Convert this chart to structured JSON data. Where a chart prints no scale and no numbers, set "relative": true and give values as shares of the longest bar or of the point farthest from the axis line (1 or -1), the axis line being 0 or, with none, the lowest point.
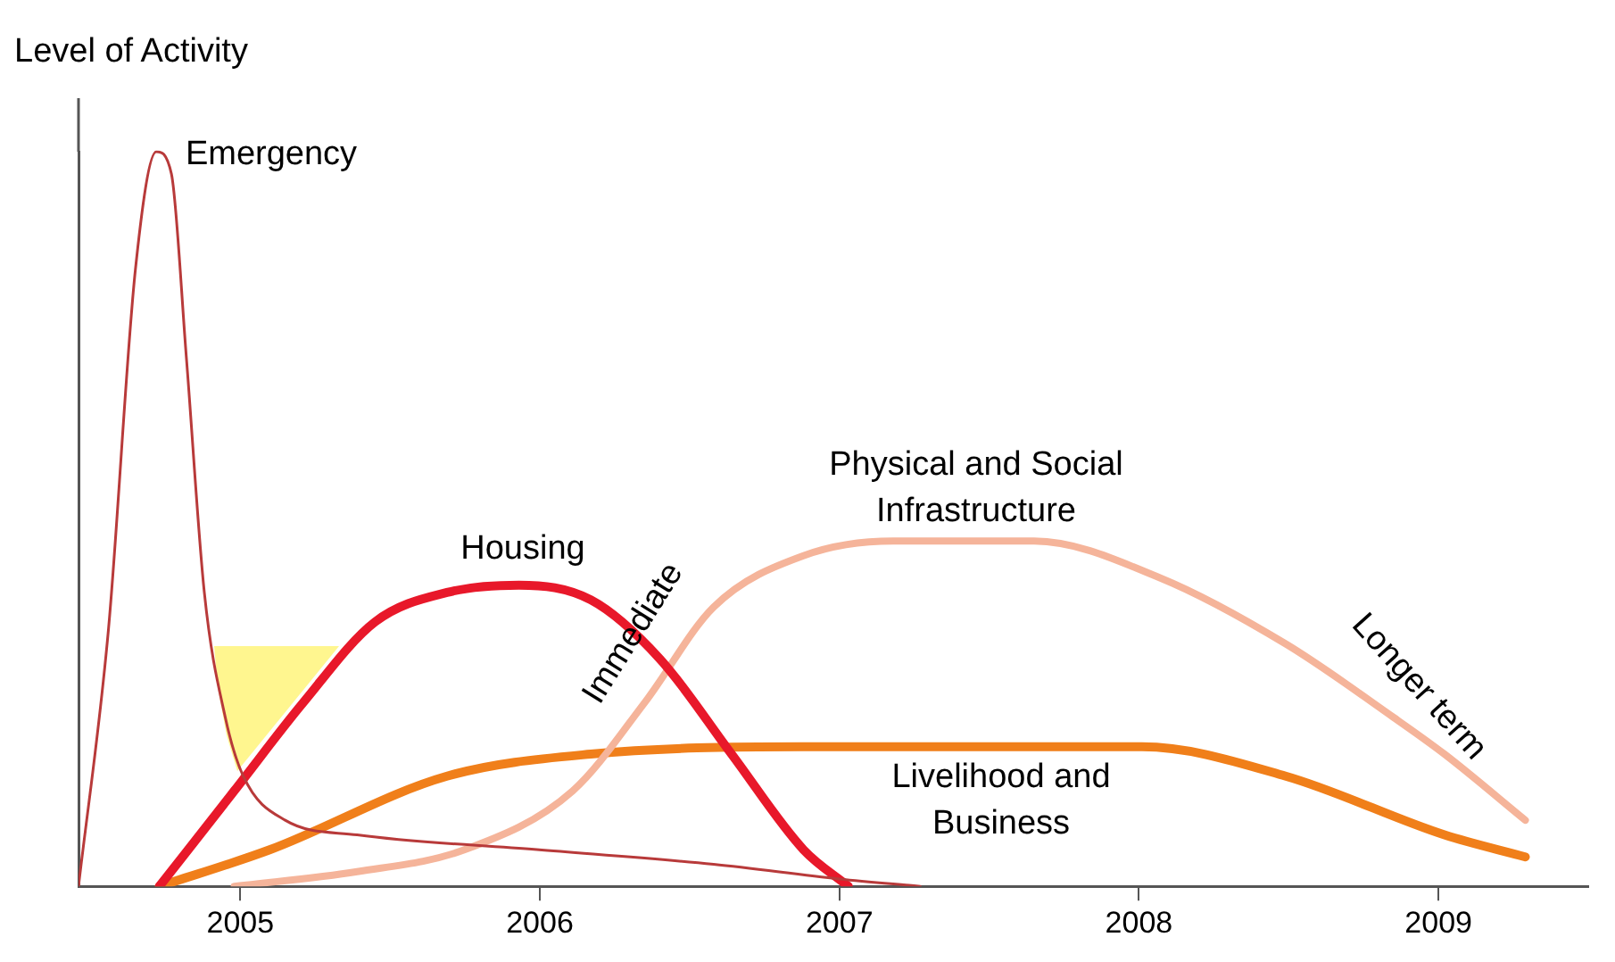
{
  "chart_data": {
    "type": "line",
    "ylabel": "Level of Activity",
    "relative": true,
    "xlim": [
      2004.46,
      2009.5
    ],
    "xticks": [
      2005,
      2006,
      2007,
      2008,
      2009
    ],
    "grid": false,
    "legend": false,
    "marker": "none",
    "line_style": "solid",
    "series": [
      {
        "name": "Emergency",
        "color": "#b83a3a",
        "x": [
          2004.46,
          2004.56,
          2004.65,
          2004.72,
          2004.77,
          2004.82,
          2004.88,
          2004.95,
          2005.01,
          2005.15,
          2005.39,
          2005.99,
          2006.58,
          2007.0,
          2007.27
        ],
        "values": [
          0,
          0.35,
          0.84,
          1,
          0.97,
          0.72,
          0.4,
          0.23,
          0.15,
          0.09,
          0.07,
          0.05,
          0.03,
          0.01,
          0
        ]
      },
      {
        "name": "Housing",
        "color": "#e8182a",
        "x": [
          2004.73,
          2004.98,
          2005.21,
          2005.45,
          2005.69,
          2005.93,
          2006.17,
          2006.4,
          2006.64,
          2006.88,
          2007.03
        ],
        "values": [
          0,
          0.13,
          0.25,
          0.36,
          0.4,
          0.41,
          0.39,
          0.31,
          0.18,
          0.05,
          0
        ]
      },
      {
        "name": "Physical and Social\nInfrastructure",
        "color": "#f5b49a",
        "x": [
          2004.98,
          2005.39,
          2005.75,
          2006.11,
          2006.35,
          2006.58,
          2006.88,
          2007.18,
          2007.65,
          2008.07,
          2008.49,
          2008.85,
          2009.02,
          2009.29
        ],
        "values": [
          0,
          0.02,
          0.05,
          0.13,
          0.25,
          0.38,
          0.45,
          0.47,
          0.47,
          0.42,
          0.33,
          0.23,
          0.18,
          0.09
        ]
      },
      {
        "name": "Livelihood and\nBusiness",
        "color": "#f07f1a",
        "x": [
          2004.73,
          2005.1,
          2005.69,
          2006.17,
          2006.88,
          2008.01,
          2008.49,
          2009.02,
          2009.29
        ],
        "values": [
          0,
          0.05,
          0.15,
          0.18,
          0.19,
          0.19,
          0.15,
          0.07,
          0.04
        ]
      }
    ],
    "annotations": [
      "Immediate",
      "Longer term"
    ]
  }
}
